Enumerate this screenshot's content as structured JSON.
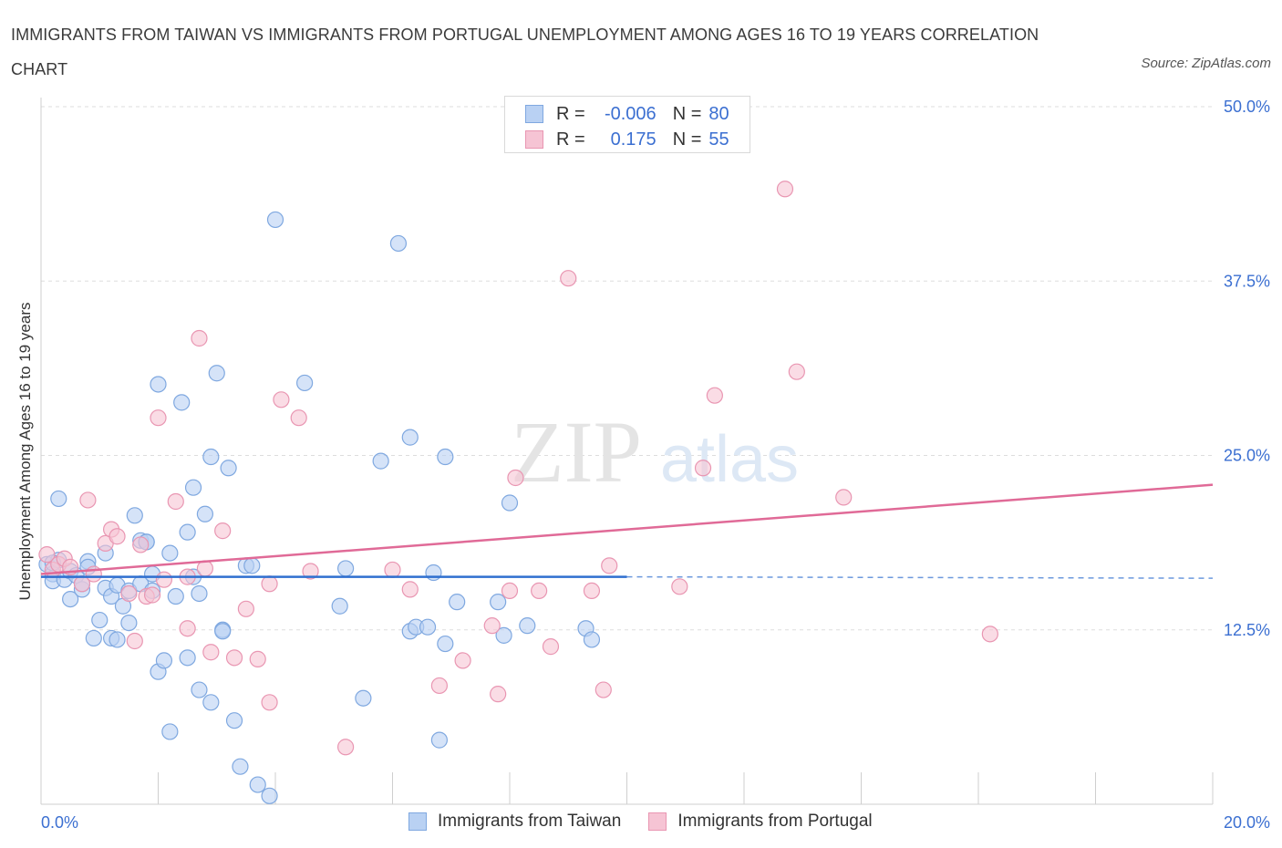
{
  "title": "IMMIGRANTS FROM TAIWAN VS IMMIGRANTS FROM PORTUGAL UNEMPLOYMENT AMONG AGES 16 TO 19 YEARS CORRELATION CHART",
  "source": "Source: ZipAtlas.com",
  "watermark": {
    "zip": "ZIP",
    "atlas": "atlas"
  },
  "legend": {
    "rows": [
      {
        "r_label": "R =",
        "r_value": "-0.006",
        "n_label": "N =",
        "n_value": "80"
      },
      {
        "r_label": "R =",
        "r_value": "0.175",
        "n_label": "N =",
        "n_value": "55"
      }
    ]
  },
  "colors": {
    "taiwan_fill": "#b9d1f3",
    "taiwan_stroke": "#7fa8e0",
    "taiwan_line": "#2f6fcf",
    "portugal_fill": "#f6c4d4",
    "portugal_stroke": "#e996b2",
    "portugal_line": "#e06a97",
    "tick_label": "#3b6fd1",
    "grid": "#dddddd"
  },
  "chart_data": {
    "type": "scatter",
    "title": "IMMIGRANTS FROM TAIWAN VS IMMIGRANTS FROM PORTUGAL UNEMPLOYMENT AMONG AGES 16 TO 19 YEARS CORRELATION CHART",
    "xlabel": "",
    "ylabel": "Unemployment Among Ages 16 to 19 years",
    "xlim": [
      0,
      20
    ],
    "ylim": [
      0,
      50
    ],
    "x_tick_labels": [
      "0.0%",
      "20.0%"
    ],
    "y_ticks": [
      12.5,
      25.0,
      37.5,
      50.0
    ],
    "y_tick_labels": [
      "12.5%",
      "25.0%",
      "37.5%",
      "50.0%"
    ],
    "grid": true,
    "legend_position": "top-center",
    "series": [
      {
        "name": "Immigrants from Taiwan",
        "r": -0.006,
        "n": 80,
        "trend": {
          "x": [
            0,
            10
          ],
          "y": [
            16.3,
            16.3
          ],
          "dashed_to": 20
        },
        "points": [
          [
            0.1,
            17.2
          ],
          [
            0.2,
            16.5
          ],
          [
            0.2,
            16.0
          ],
          [
            0.3,
            21.9
          ],
          [
            0.3,
            17.5
          ],
          [
            0.4,
            16.1
          ],
          [
            0.5,
            16.7
          ],
          [
            0.5,
            14.7
          ],
          [
            0.6,
            16.4
          ],
          [
            0.7,
            15.4
          ],
          [
            0.7,
            15.8
          ],
          [
            0.8,
            17.4
          ],
          [
            0.8,
            17.0
          ],
          [
            0.9,
            11.9
          ],
          [
            1.0,
            13.2
          ],
          [
            1.1,
            18.0
          ],
          [
            1.1,
            15.5
          ],
          [
            1.2,
            14.9
          ],
          [
            1.2,
            11.9
          ],
          [
            1.3,
            11.8
          ],
          [
            1.3,
            15.7
          ],
          [
            1.4,
            14.2
          ],
          [
            1.5,
            13.0
          ],
          [
            1.5,
            15.3
          ],
          [
            1.6,
            20.7
          ],
          [
            1.7,
            15.8
          ],
          [
            1.7,
            18.9
          ],
          [
            1.8,
            18.8
          ],
          [
            1.9,
            16.5
          ],
          [
            1.9,
            15.3
          ],
          [
            2.0,
            9.5
          ],
          [
            2.0,
            30.1
          ],
          [
            2.1,
            10.3
          ],
          [
            2.2,
            18.0
          ],
          [
            2.2,
            5.2
          ],
          [
            2.3,
            14.9
          ],
          [
            2.4,
            28.8
          ],
          [
            2.5,
            10.5
          ],
          [
            2.5,
            19.5
          ],
          [
            2.6,
            22.7
          ],
          [
            2.6,
            16.3
          ],
          [
            2.7,
            8.2
          ],
          [
            2.7,
            15.1
          ],
          [
            2.8,
            20.8
          ],
          [
            2.9,
            7.3
          ],
          [
            2.9,
            24.9
          ],
          [
            3.0,
            30.9
          ],
          [
            3.1,
            12.5
          ],
          [
            3.2,
            24.1
          ],
          [
            3.3,
            6.0
          ],
          [
            3.4,
            2.7
          ],
          [
            3.5,
            17.1
          ],
          [
            3.6,
            17.1
          ],
          [
            3.7,
            1.4
          ],
          [
            3.9,
            0.6
          ],
          [
            4.0,
            41.9
          ],
          [
            4.5,
            30.2
          ],
          [
            5.1,
            14.2
          ],
          [
            5.2,
            16.9
          ],
          [
            5.5,
            7.6
          ],
          [
            5.8,
            24.6
          ],
          [
            6.1,
            40.2
          ],
          [
            6.3,
            26.3
          ],
          [
            6.3,
            12.4
          ],
          [
            6.4,
            12.7
          ],
          [
            6.6,
            12.7
          ],
          [
            6.7,
            16.6
          ],
          [
            6.8,
            4.6
          ],
          [
            6.9,
            24.9
          ],
          [
            6.9,
            11.5
          ],
          [
            7.1,
            14.5
          ],
          [
            7.8,
            14.5
          ],
          [
            7.9,
            12.1
          ],
          [
            8.0,
            21.6
          ],
          [
            8.3,
            12.8
          ],
          [
            9.3,
            12.6
          ],
          [
            9.4,
            11.8
          ],
          [
            0.2,
            17.3
          ],
          [
            1.8,
            18.8
          ],
          [
            3.1,
            12.4
          ]
        ]
      },
      {
        "name": "Immigrants from Portugal",
        "r": 0.175,
        "n": 55,
        "trend": {
          "x": [
            0,
            20
          ],
          "y": [
            16.5,
            22.9
          ]
        },
        "points": [
          [
            0.1,
            17.9
          ],
          [
            0.2,
            16.8
          ],
          [
            0.3,
            17.2
          ],
          [
            0.4,
            17.6
          ],
          [
            0.5,
            17.0
          ],
          [
            0.7,
            15.8
          ],
          [
            0.8,
            21.8
          ],
          [
            0.9,
            16.5
          ],
          [
            1.1,
            18.7
          ],
          [
            1.2,
            19.7
          ],
          [
            1.3,
            19.2
          ],
          [
            1.5,
            15.1
          ],
          [
            1.6,
            11.7
          ],
          [
            1.7,
            18.6
          ],
          [
            1.8,
            14.9
          ],
          [
            1.9,
            15.0
          ],
          [
            2.0,
            27.7
          ],
          [
            2.1,
            16.1
          ],
          [
            2.3,
            21.7
          ],
          [
            2.5,
            16.3
          ],
          [
            2.5,
            12.6
          ],
          [
            2.7,
            33.4
          ],
          [
            2.8,
            16.9
          ],
          [
            2.9,
            10.9
          ],
          [
            3.1,
            19.6
          ],
          [
            3.3,
            10.5
          ],
          [
            3.5,
            14.0
          ],
          [
            3.7,
            10.4
          ],
          [
            3.9,
            7.3
          ],
          [
            3.9,
            15.8
          ],
          [
            4.1,
            29.0
          ],
          [
            4.4,
            27.7
          ],
          [
            4.6,
            16.7
          ],
          [
            5.2,
            4.1
          ],
          [
            6.0,
            16.8
          ],
          [
            6.3,
            15.4
          ],
          [
            6.8,
            8.5
          ],
          [
            7.2,
            10.3
          ],
          [
            7.7,
            12.8
          ],
          [
            7.8,
            7.9
          ],
          [
            8.0,
            15.3
          ],
          [
            8.1,
            23.4
          ],
          [
            8.5,
            15.3
          ],
          [
            8.7,
            11.3
          ],
          [
            9.4,
            15.3
          ],
          [
            9.6,
            8.2
          ],
          [
            9.7,
            17.1
          ],
          [
            10.9,
            15.6
          ],
          [
            11.3,
            24.1
          ],
          [
            11.5,
            29.3
          ],
          [
            12.7,
            44.1
          ],
          [
            12.9,
            31.0
          ],
          [
            13.7,
            22.0
          ],
          [
            16.2,
            12.2
          ],
          [
            9.0,
            37.7
          ]
        ]
      }
    ]
  },
  "bottom_legend": [
    "Immigrants from Taiwan",
    "Immigrants from Portugal"
  ]
}
